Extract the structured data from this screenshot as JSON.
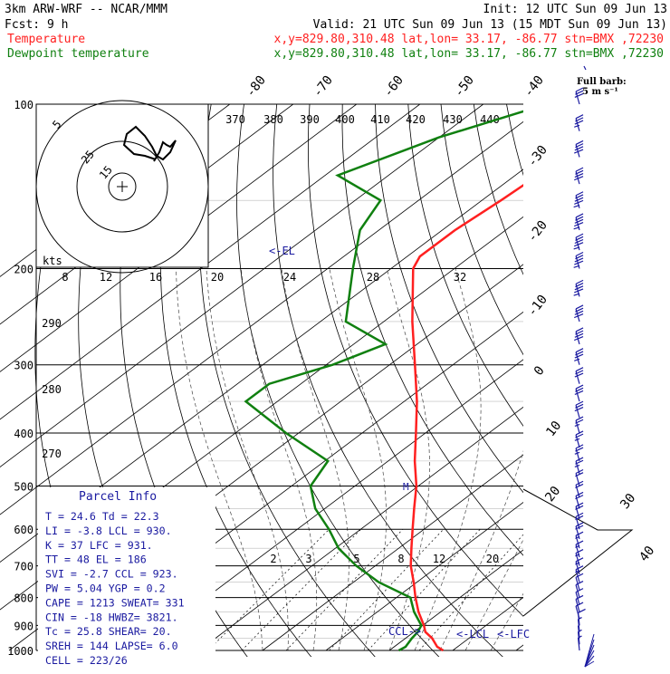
{
  "header": {
    "model": "3km ARW-WRF -- NCAR/MMM",
    "init": "Init: 12 UTC Sun 09 Jun 13",
    "fcst": "Fcst:     9 h",
    "valid": "Valid: 21 UTC Sun 09 Jun 13 (15 MDT Sun 09 Jun 13)",
    "temp_label": "Temperature",
    "temp_loc": "x,y=829.80,310.48   lat,lon= 33.17, -86.77   stn=BMX ,72230",
    "dew_label": "Dewpoint temperature",
    "dew_loc": "x,y=829.80,310.48   lat,lon= 33.17, -86.77   stn=BMX ,72230"
  },
  "colors": {
    "temperature": "#ff2020",
    "dewpoint": "#108010",
    "parcel": "#1a1aa0",
    "grid": "#000000"
  },
  "full_barb": {
    "title": "Full barb:",
    "value": "5 m s⁻¹"
  },
  "parcel_info": {
    "title": "Parcel Info",
    "rows": [
      "T  =    24.6  Td =  22.3",
      "LI =    -3.8  LCL =  930.",
      "K  =     37  LFC =  931.",
      "TT =     48  EL  =  186",
      "SVI =   -2.7  CCL =  923.",
      "PW =   5.04  YGP =   0.2",
      "CAPE =  1213  SWEAT=  331",
      "CIN =    -18  HWBZ= 3821.",
      "Tc =   25.8  SHEAR=  20.",
      "SREH =  144  LAPSE=  6.0",
      "CELL = 223/26"
    ]
  },
  "annotations": {
    "el": "<-EL",
    "ccl": "CCL->",
    "lcl": "<-LCL",
    "lfc": "<-LFC",
    "m": "M"
  },
  "hodograph": {
    "units_label": "kts",
    "ring_labels": [
      "5",
      "25",
      "15"
    ]
  },
  "chart_data": {
    "type": "skew-t log-p",
    "pressure_levels": [
      100,
      200,
      300,
      400,
      500,
      600,
      700,
      800,
      900,
      1000
    ],
    "temperature_tick_labels": [
      "-80",
      "-70",
      "-60",
      "-50",
      "-40",
      "-30",
      "-20",
      "-10",
      "0",
      "10",
      "20",
      "30",
      "40"
    ],
    "theta_labels": [
      "370",
      "380",
      "390",
      "400",
      "410",
      "420",
      "430",
      "440"
    ],
    "theta_lower_labels": [
      "290",
      "280",
      "270"
    ],
    "mixing_ratio_top_labels": [
      "8",
      "12",
      "16",
      "20",
      "24",
      "28",
      "32"
    ],
    "mixing_ratio_bottom_labels": [
      "2",
      "3",
      "5",
      "8",
      "12",
      "20"
    ],
    "series": [
      {
        "name": "Temperature",
        "p": [
          1000,
          985,
          950,
          925,
          900,
          850,
          800,
          750,
          700,
          650,
          600,
          550,
          500,
          450,
          400,
          350,
          300,
          250,
          200,
          190,
          170,
          150,
          125,
          100
        ],
        "t": [
          28.5,
          26.8,
          24.2,
          21.8,
          20.2,
          16.5,
          13.0,
          9.5,
          5.6,
          2.0,
          -1.8,
          -5.9,
          -10.3,
          -15.8,
          -21.5,
          -28.0,
          -36.0,
          -45.5,
          -56.5,
          -58.0,
          -58.0,
          -57.0,
          -56.0,
          -55.0
        ]
      },
      {
        "name": "Dewpoint temperature",
        "p": [
          1000,
          985,
          950,
          925,
          900,
          850,
          800,
          750,
          700,
          650,
          600,
          550,
          500,
          450,
          400,
          350,
          325,
          300,
          275,
          250,
          200,
          170,
          150,
          135,
          115,
          100
        ],
        "t": [
          21.5,
          21.8,
          21.0,
          20.6,
          19.8,
          15.8,
          12.2,
          4.0,
          -3.0,
          -9.5,
          -15.0,
          -21.5,
          -27.0,
          -29.5,
          -42.0,
          -55.0,
          -55.0,
          -49.0,
          -45.0,
          -56.0,
          -66.0,
          -73.0,
          -76.0,
          -88.0,
          -80.0,
          -70.0
        ]
      }
    ],
    "wind_barbs": {
      "pressure": [
        1000,
        975,
        950,
        925,
        900,
        875,
        850,
        825,
        800,
        775,
        750,
        725,
        700,
        675,
        650,
        625,
        600,
        575,
        550,
        525,
        500,
        475,
        450,
        425,
        400,
        375,
        350,
        325,
        300,
        275,
        250,
        225,
        200,
        185,
        170,
        155,
        140,
        125,
        112,
        100
      ],
      "speed_ms": [
        3,
        3,
        2,
        4,
        5,
        5,
        6,
        6,
        7,
        7,
        8,
        8,
        8,
        9,
        9,
        10,
        10,
        11,
        12,
        12,
        12,
        13,
        13,
        14,
        14,
        15,
        15,
        16,
        18,
        20,
        22,
        24,
        25,
        25,
        24,
        23,
        22,
        20,
        18,
        16
      ]
    }
  }
}
